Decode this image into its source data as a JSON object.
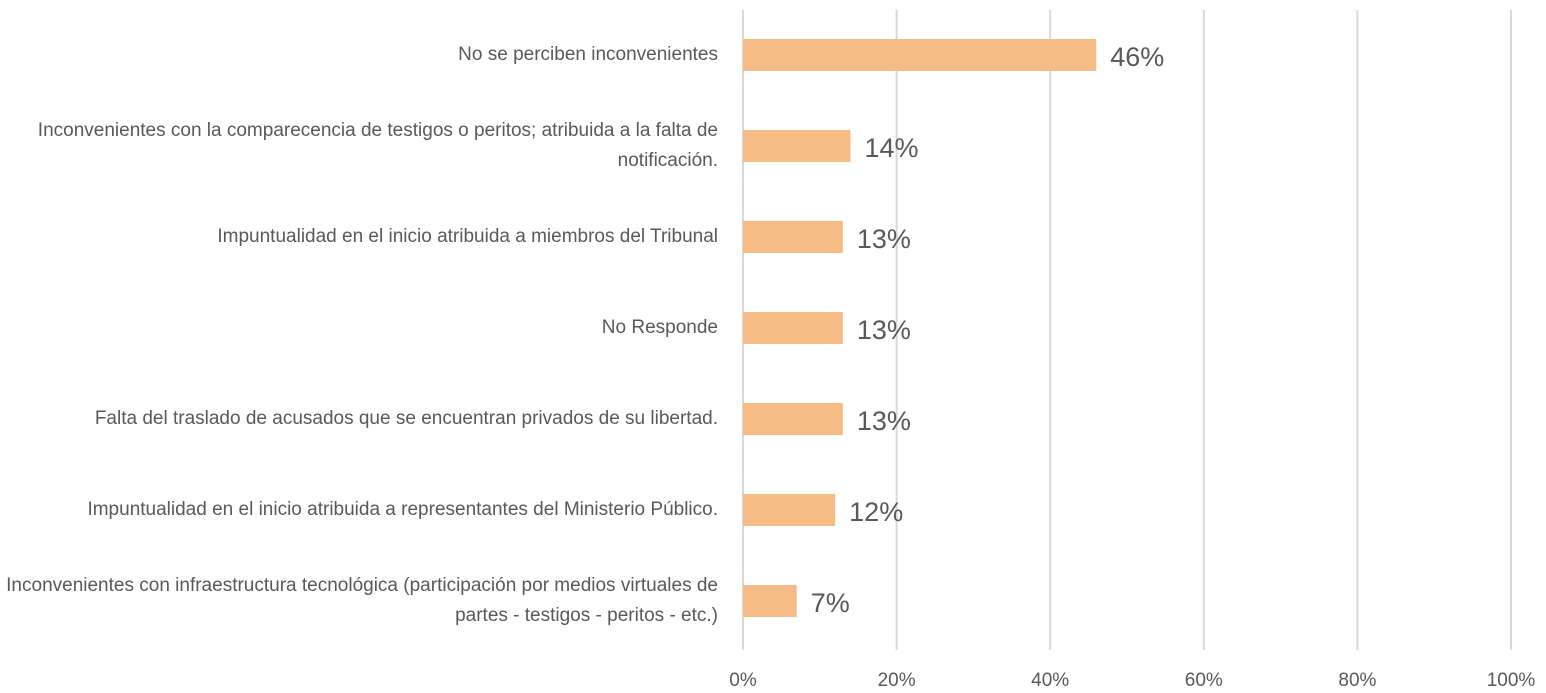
{
  "chart_data": {
    "type": "bar",
    "orientation": "horizontal",
    "categories": [
      "No se perciben inconvenientes",
      "Inconvenientes con la comparecencia de testigos o peritos; atribuida a la falta de notificación.",
      "Impuntualidad en el inicio atribuida a miembros del Tribunal",
      "No Responde",
      "Falta del traslado de acusados que se encuentran privados de su libertad.",
      "Impuntualidad en el inicio atribuida a representantes del Ministerio Público.",
      "Inconvenientes con  infraestructura tecnológica (participación por medios virtuales de partes - testigos - peritos - etc.)"
    ],
    "values": [
      46,
      14,
      13,
      13,
      13,
      12,
      7
    ],
    "value_labels": [
      "46%",
      "14%",
      "13%",
      "13%",
      "13%",
      "12%",
      "7%"
    ],
    "color": "#f6bc86",
    "xlim": [
      0,
      100
    ],
    "xticks": [
      {
        "value": 0,
        "label": "0%"
      },
      {
        "value": 20,
        "label": "20%"
      },
      {
        "value": 40,
        "label": "40%"
      },
      {
        "value": 60,
        "label": "60%"
      },
      {
        "value": 80,
        "label": "80%"
      },
      {
        "value": 100,
        "label": "100%"
      }
    ],
    "grid": true
  }
}
